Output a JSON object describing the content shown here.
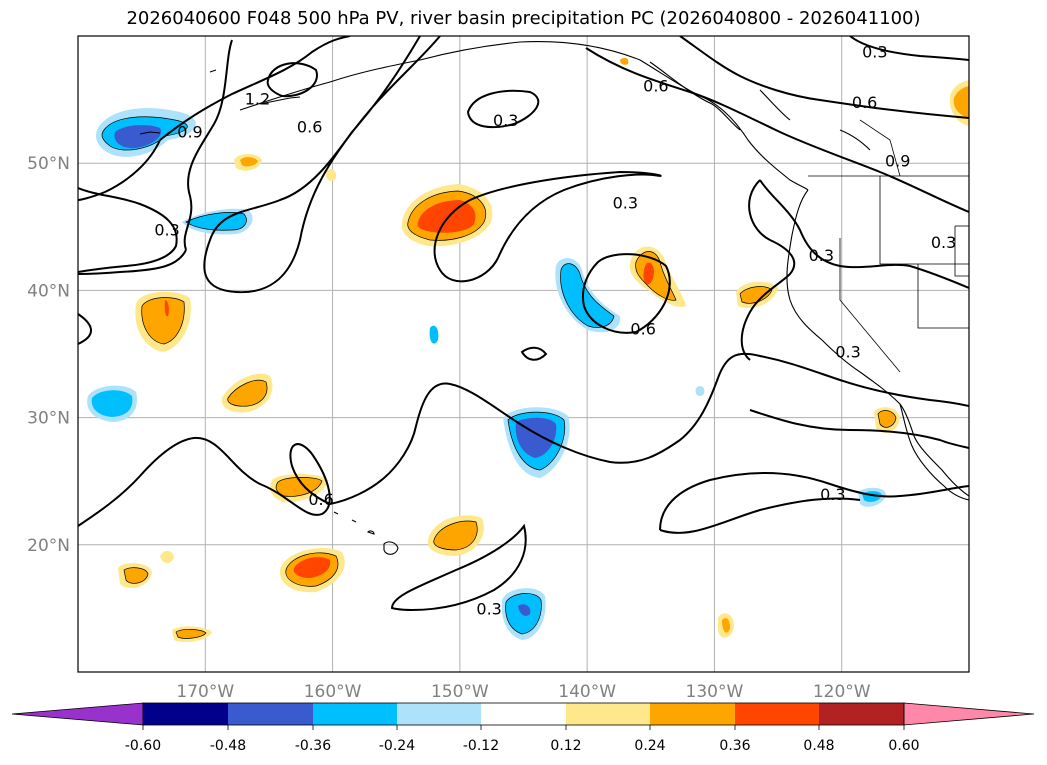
{
  "title": "2026040600 F048 500 hPa PV, river basin precipitation PC (2026040800 - 2026041100)",
  "colors": {
    "purple": "#9932CC",
    "navy": "#00008B",
    "royal": "#3A5BCF",
    "sky": "#00BFFF",
    "light_sky": "#ADE2FA",
    "white": "#FFFFFF",
    "light_yellow": "#FFE88C",
    "orange": "#FFA500",
    "orange_red": "#FF4500",
    "firebrick": "#B22222",
    "pink": "#FF88AA"
  },
  "map": {
    "lon_range": [
      -180,
      -110
    ],
    "lat_range": [
      10,
      60
    ],
    "lon_ticks": [
      {
        "value": -170,
        "label": "170°W"
      },
      {
        "value": -160,
        "label": "160°W"
      },
      {
        "value": -150,
        "label": "150°W"
      },
      {
        "value": -140,
        "label": "140°W"
      },
      {
        "value": -130,
        "label": "130°W"
      },
      {
        "value": -120,
        "label": "120°W"
      }
    ],
    "lat_ticks": [
      {
        "value": 20,
        "label": "20°N"
      },
      {
        "value": 30,
        "label": "30°N"
      },
      {
        "value": 40,
        "label": "40°N"
      },
      {
        "value": 50,
        "label": "50°N"
      }
    ],
    "contour_labels": [
      {
        "text": "1.2",
        "lon": -165.9,
        "lat": 55.1
      },
      {
        "text": "0.9",
        "lon": -171.2,
        "lat": 52.5
      },
      {
        "text": "0.6",
        "lon": -161.8,
        "lat": 52.9
      },
      {
        "text": "0.3",
        "lon": -146.4,
        "lat": 53.4
      },
      {
        "text": "0.6",
        "lon": -134.6,
        "lat": 56.1
      },
      {
        "text": "0.3",
        "lon": -117.4,
        "lat": 58.8
      },
      {
        "text": "0.6",
        "lon": -118.2,
        "lat": 54.8
      },
      {
        "text": "0.9",
        "lon": -115.6,
        "lat": 50.2
      },
      {
        "text": "0.3",
        "lon": -173.0,
        "lat": 44.8
      },
      {
        "text": "0.3",
        "lon": -137.0,
        "lat": 46.9
      },
      {
        "text": "0.3",
        "lon": -121.6,
        "lat": 42.8
      },
      {
        "text": "0.3",
        "lon": -112.0,
        "lat": 43.8
      },
      {
        "text": "0.6",
        "lon": -135.6,
        "lat": 37.0
      },
      {
        "text": "0.3",
        "lon": -119.5,
        "lat": 35.2
      },
      {
        "text": "0.6",
        "lon": -160.9,
        "lat": 23.6
      },
      {
        "text": "0.3",
        "lon": -120.7,
        "lat": 24.0
      },
      {
        "text": "0.3",
        "lon": -147.7,
        "lat": 15.0
      }
    ]
  },
  "colorbar": {
    "levels": [
      "-0.60",
      "-0.48",
      "-0.36",
      "-0.24",
      "-0.12",
      "0.12",
      "0.24",
      "0.36",
      "0.48",
      "0.60"
    ]
  }
}
